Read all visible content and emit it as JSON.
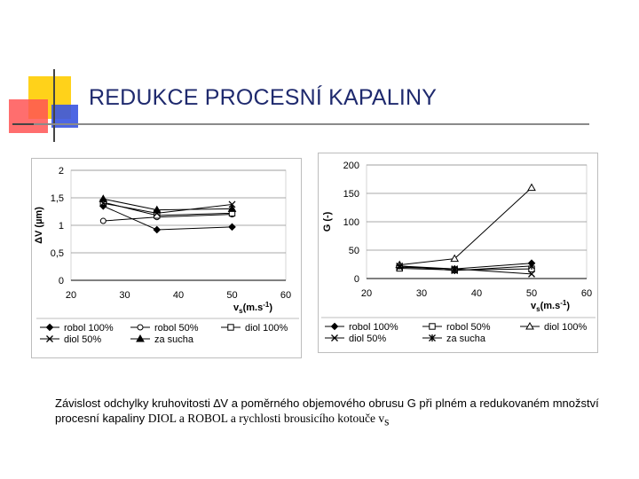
{
  "slide": {
    "title": "REDUKCE PROCESNÍ KAPALINY",
    "caption_part1": "Závislost odchylky kruhovitosti ∆V  a poměrného objemového obrusu G při plném a redukovaném množství procesní kapaliny ",
    "caption_part2": "DIOL a ROBOL a rychlosti brousicího kotouče v",
    "caption_sub": "s"
  },
  "chart_data": [
    {
      "type": "line",
      "ylabel": "ΔV (µm)",
      "xlabel": "vs(m.s-1)",
      "x": [
        26,
        36,
        50
      ],
      "xlim": [
        20,
        60
      ],
      "xticks": [
        20,
        30,
        40,
        50,
        60
      ],
      "ylim": [
        0,
        2
      ],
      "yticks": [
        0,
        0.5,
        1,
        1.5,
        2
      ],
      "ytick_labels": [
        "0",
        "0,5",
        "1",
        "1,5",
        "2"
      ],
      "grid": true,
      "legend_position": "bottom",
      "series": [
        {
          "name": "robol 100%",
          "marker": "diamond-filled",
          "values": [
            1.35,
            0.92,
            0.97
          ]
        },
        {
          "name": "robol 50%",
          "marker": "circle-open",
          "values": [
            1.08,
            1.15,
            1.2
          ]
        },
        {
          "name": "diol 100%",
          "marker": "square-open",
          "values": [
            1.42,
            1.18,
            1.22
          ]
        },
        {
          "name": "diol 50%",
          "marker": "x",
          "values": [
            1.4,
            1.22,
            1.38
          ]
        },
        {
          "name": "za sucha",
          "marker": "triangle-filled",
          "values": [
            1.48,
            1.28,
            1.3
          ]
        }
      ]
    },
    {
      "type": "line",
      "ylabel": "G (-)",
      "xlabel": "vs(m.s-1)",
      "x": [
        26,
        36,
        50
      ],
      "xlim": [
        20,
        60
      ],
      "xticks": [
        20,
        30,
        40,
        50,
        60
      ],
      "ylim": [
        0,
        200
      ],
      "yticks": [
        0,
        50,
        100,
        150,
        200
      ],
      "grid": true,
      "legend_position": "bottom",
      "series": [
        {
          "name": "robol 100%",
          "marker": "diamond-filled",
          "values": [
            22,
            17,
            27
          ]
        },
        {
          "name": "robol 50%",
          "marker": "square-open",
          "values": [
            18,
            15,
            17
          ]
        },
        {
          "name": "diol 100%",
          "marker": "triangle-open",
          "values": [
            24,
            35,
            160
          ]
        },
        {
          "name": "diol 50%",
          "marker": "x",
          "values": [
            20,
            17,
            8
          ]
        },
        {
          "name": "za sucha",
          "marker": "asterisk",
          "values": [
            22,
            14,
            22
          ]
        }
      ]
    }
  ]
}
